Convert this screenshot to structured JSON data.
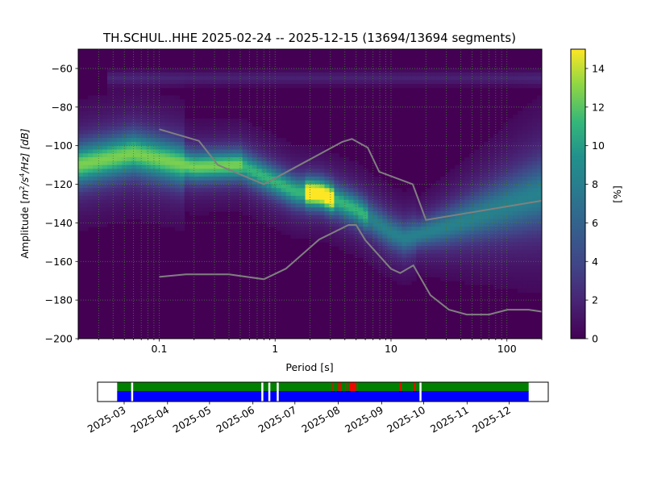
{
  "chart_data": {
    "type": "heatmap",
    "title": "TH.SCHUL..HHE   2025-02-24 -- 2025-12-15  (13694/13694 segments)",
    "xlabel": "Period [s]",
    "ylabel": "Amplitude [m²/s⁴/Hz] [dB]",
    "ylabel_parts": {
      "pre": "Amplitude [",
      "m": "m",
      "sup2": "2",
      "mid": "/s",
      "sup4": "4",
      "post": "/Hz] [dB]"
    },
    "x_scale": "log",
    "xlim": [
      0.02,
      200
    ],
    "ylim": [
      -200,
      -50
    ],
    "xticks": [
      {
        "v": 0.1,
        "label": "0.1"
      },
      {
        "v": 1,
        "label": "1"
      },
      {
        "v": 10,
        "label": "10"
      },
      {
        "v": 100,
        "label": "100"
      }
    ],
    "yticks": [
      {
        "v": -60,
        "label": "−60"
      },
      {
        "v": -80,
        "label": "−80"
      },
      {
        "v": -100,
        "label": "−100"
      },
      {
        "v": -120,
        "label": "−120"
      },
      {
        "v": -140,
        "label": "−140"
      },
      {
        "v": -160,
        "label": "−160"
      },
      {
        "v": -180,
        "label": "−180"
      },
      {
        "v": -200,
        "label": "−200"
      }
    ],
    "grid": true,
    "colormap": "viridis",
    "colorbar": {
      "label": "[%]",
      "range": [
        0,
        15
      ],
      "ticks": [
        "0",
        "2",
        "4",
        "6",
        "8",
        "10",
        "12",
        "14"
      ]
    },
    "density_ridge": [
      [
        0.02,
        -110
      ],
      [
        0.06,
        -104
      ],
      [
        0.1,
        -107
      ],
      [
        0.2,
        -111
      ],
      [
        0.5,
        -110
      ],
      [
        0.8,
        -116
      ],
      [
        1.5,
        -124
      ],
      [
        2.5,
        -125
      ],
      [
        5,
        -133
      ],
      [
        10,
        -145
      ],
      [
        13,
        -148
      ],
      [
        30,
        -142
      ],
      [
        200,
        -125
      ]
    ],
    "high_noise_model": [
      [
        0.1,
        -91.5
      ],
      [
        0.22,
        -97.5
      ],
      [
        0.32,
        -110
      ],
      [
        0.8,
        -120
      ],
      [
        3.8,
        -98
      ],
      [
        4.6,
        -96.5
      ],
      [
        6.3,
        -101
      ],
      [
        7.9,
        -113.5
      ],
      [
        15.4,
        -120
      ],
      [
        20,
        -138.5
      ],
      [
        200,
        -128.5
      ]
    ],
    "low_noise_model": [
      [
        0.1,
        -168
      ],
      [
        0.17,
        -166.7
      ],
      [
        0.4,
        -166.7
      ],
      [
        0.8,
        -169.2
      ],
      [
        1.24,
        -163.7
      ],
      [
        2.4,
        -148.6
      ],
      [
        4.3,
        -141.1
      ],
      [
        5,
        -141.1
      ],
      [
        6,
        -149
      ],
      [
        10,
        -163.8
      ],
      [
        12,
        -166
      ],
      [
        15.6,
        -162
      ],
      [
        21.9,
        -177.5
      ],
      [
        31.6,
        -185
      ],
      [
        45,
        -187.5
      ],
      [
        70,
        -187.5
      ],
      [
        101,
        -185
      ],
      [
        154,
        -185
      ],
      [
        200,
        -186
      ]
    ],
    "model_color": "#808080",
    "timeline": {
      "ticks": [
        "2025-03",
        "2025-04",
        "2025-05",
        "2025-06",
        "2025-07",
        "2025-08",
        "2025-09",
        "2025-10",
        "2025-11",
        "2025-12"
      ],
      "range": [
        "2025-02-24",
        "2025-12-15"
      ],
      "gaps": [
        "2025-03-06",
        "2025-06-07",
        "2025-06-12",
        "2025-06-18",
        "2025-09-28"
      ],
      "flags": [
        "2025-07-27",
        "2025-08-01",
        "2025-08-02",
        "2025-08-07",
        "2025-08-09",
        "2025-08-10",
        "2025-08-11",
        "2025-08-12",
        "2025-08-13",
        "2025-09-14",
        "2025-09-24"
      ],
      "colors": {
        "data": "#0000ff",
        "used": "#008000",
        "flag": "#ff0000"
      }
    }
  }
}
